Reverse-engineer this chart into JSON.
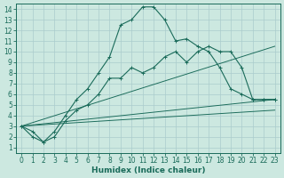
{
  "bg_color": "#cce8e0",
  "grid_color": "#aacccc",
  "line_color": "#1a6b5a",
  "xlabel": "Humidex (Indice chaleur)",
  "xlim": [
    -0.5,
    23.5
  ],
  "ylim": [
    0.5,
    14.5
  ],
  "xticks": [
    0,
    1,
    2,
    3,
    4,
    5,
    6,
    7,
    8,
    9,
    10,
    11,
    12,
    13,
    14,
    15,
    16,
    17,
    18,
    19,
    20,
    21,
    22,
    23
  ],
  "yticks": [
    1,
    2,
    3,
    4,
    5,
    6,
    7,
    8,
    9,
    10,
    11,
    12,
    13,
    14
  ],
  "curve1_x": [
    0,
    1,
    2,
    3,
    4,
    5,
    6,
    7,
    8,
    9,
    10,
    11,
    12,
    13,
    14,
    15,
    16,
    17,
    18,
    19,
    20,
    21,
    22,
    23
  ],
  "curve1_y": [
    3.0,
    2.0,
    1.5,
    2.5,
    4.0,
    5.5,
    6.5,
    8.0,
    9.5,
    12.5,
    13.0,
    14.2,
    14.2,
    13.0,
    11.0,
    11.2,
    10.5,
    10.0,
    8.5,
    6.5,
    6.0,
    5.5,
    5.5,
    5.5
  ],
  "curve2_x": [
    0,
    1,
    2,
    3,
    4,
    5,
    6,
    7,
    8,
    9,
    10,
    11,
    12,
    13,
    14,
    15,
    16,
    17,
    18,
    19,
    20,
    21,
    22,
    23
  ],
  "curve2_y": [
    3.0,
    2.5,
    1.5,
    2.0,
    3.5,
    4.5,
    5.0,
    6.0,
    7.5,
    7.5,
    8.5,
    8.0,
    8.5,
    9.5,
    10.0,
    9.0,
    10.0,
    10.5,
    10.0,
    10.0,
    8.5,
    5.5,
    5.5,
    5.5
  ],
  "line1_x": [
    0,
    23
  ],
  "line1_y": [
    3.0,
    10.5
  ],
  "line2_x": [
    0,
    23
  ],
  "line2_y": [
    3.0,
    5.5
  ],
  "line3_x": [
    0,
    23
  ],
  "line3_y": [
    3.0,
    4.5
  ],
  "tick_fontsize": 5.5,
  "xlabel_fontsize": 6.5,
  "lw": 0.8,
  "ms": 2.5
}
